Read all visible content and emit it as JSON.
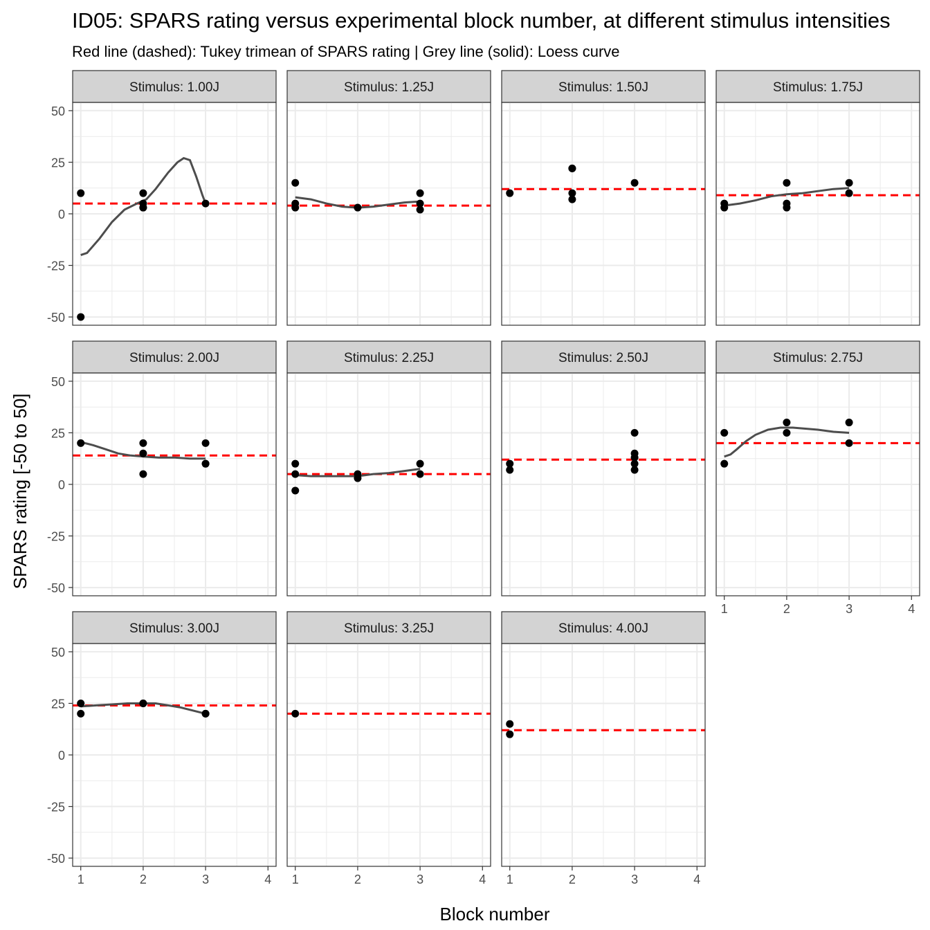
{
  "chart_data": {
    "type": "scatter",
    "title": "ID05: SPARS rating versus experimental block number, at different stimulus intensities",
    "subtitle": "Red line (dashed): Tukey trimean of SPARS rating | Grey line (solid): Loess curve",
    "xlabel": "Block number",
    "ylabel": "SPARS rating [-50 to 50]",
    "xlim": [
      0.87,
      4.13
    ],
    "ylim": [
      -54,
      54
    ],
    "x_ticks": [
      1,
      2,
      3,
      4
    ],
    "y_ticks": [
      -50,
      -25,
      0,
      25,
      50
    ],
    "grid": true,
    "colors": {
      "points": "#000000",
      "trimean": "#ff0000",
      "loess": "#4d4d4d",
      "strip": "#d3d3d3"
    },
    "panels": [
      {
        "strip": "Stimulus: 1.00J",
        "trimean": 5,
        "points": [
          [
            1,
            10
          ],
          [
            1,
            -50
          ],
          [
            2,
            10
          ],
          [
            2,
            5
          ],
          [
            2,
            3
          ],
          [
            2,
            3
          ],
          [
            3,
            5
          ]
        ],
        "loess": [
          [
            1,
            -20
          ],
          [
            1.1,
            -19
          ],
          [
            1.3,
            -12
          ],
          [
            1.5,
            -4
          ],
          [
            1.7,
            2
          ],
          [
            1.9,
            5
          ],
          [
            2.05,
            7
          ],
          [
            2.2,
            12
          ],
          [
            2.4,
            20
          ],
          [
            2.55,
            25
          ],
          [
            2.65,
            27
          ],
          [
            2.75,
            26
          ],
          [
            2.85,
            18
          ],
          [
            2.95,
            9
          ],
          [
            3,
            5
          ]
        ]
      },
      {
        "strip": "Stimulus: 1.25J",
        "trimean": 4,
        "points": [
          [
            1,
            15
          ],
          [
            1,
            5
          ],
          [
            1,
            3
          ],
          [
            2,
            3
          ],
          [
            3,
            10
          ],
          [
            3,
            5
          ],
          [
            3,
            2
          ]
        ],
        "loess": [
          [
            1,
            8
          ],
          [
            1.25,
            7
          ],
          [
            1.5,
            5
          ],
          [
            1.75,
            3.5
          ],
          [
            2,
            3
          ],
          [
            2.25,
            3.5
          ],
          [
            2.5,
            4.5
          ],
          [
            2.75,
            5.5
          ],
          [
            3,
            6
          ]
        ]
      },
      {
        "strip": "Stimulus: 1.50J",
        "trimean": 12,
        "points": [
          [
            1,
            10
          ],
          [
            2,
            22
          ],
          [
            2,
            22
          ],
          [
            2,
            10
          ],
          [
            2,
            7
          ],
          [
            3,
            15
          ]
        ],
        "loess": []
      },
      {
        "strip": "Stimulus: 1.75J",
        "trimean": 9,
        "points": [
          [
            1,
            5
          ],
          [
            1,
            3
          ],
          [
            2,
            15
          ],
          [
            2,
            5
          ],
          [
            2,
            3
          ],
          [
            3,
            15
          ],
          [
            3,
            10
          ]
        ],
        "loess": [
          [
            1,
            4
          ],
          [
            1.25,
            5
          ],
          [
            1.5,
            6.5
          ],
          [
            1.75,
            8.5
          ],
          [
            2,
            9.5
          ],
          [
            2.25,
            10
          ],
          [
            2.5,
            11
          ],
          [
            2.75,
            12
          ],
          [
            3,
            12.5
          ]
        ]
      },
      {
        "strip": "Stimulus: 2.00J",
        "trimean": 14,
        "points": [
          [
            1,
            20
          ],
          [
            2,
            20
          ],
          [
            2,
            15
          ],
          [
            2,
            5
          ],
          [
            3,
            20
          ],
          [
            3,
            10
          ],
          [
            3,
            10
          ]
        ],
        "loess": [
          [
            1,
            20.5
          ],
          [
            1.2,
            19
          ],
          [
            1.4,
            17
          ],
          [
            1.6,
            15
          ],
          [
            1.8,
            14
          ],
          [
            2,
            13.5
          ],
          [
            2.25,
            13
          ],
          [
            2.5,
            13
          ],
          [
            2.75,
            12.5
          ],
          [
            3,
            12.5
          ]
        ]
      },
      {
        "strip": "Stimulus: 2.25J",
        "trimean": 5,
        "points": [
          [
            1,
            10
          ],
          [
            1,
            5
          ],
          [
            1,
            -3
          ],
          [
            2,
            5
          ],
          [
            2,
            3
          ],
          [
            3,
            10
          ],
          [
            3,
            5
          ]
        ],
        "loess": [
          [
            1,
            4.5
          ],
          [
            1.25,
            4
          ],
          [
            1.5,
            4
          ],
          [
            1.75,
            4
          ],
          [
            2,
            4
          ],
          [
            2.25,
            5
          ],
          [
            2.5,
            5.5
          ],
          [
            2.75,
            6.5
          ],
          [
            3,
            7.5
          ]
        ]
      },
      {
        "strip": "Stimulus: 2.50J",
        "trimean": 12,
        "points": [
          [
            1,
            10
          ],
          [
            1,
            7
          ],
          [
            3,
            25
          ],
          [
            3,
            15
          ],
          [
            3,
            13
          ],
          [
            3,
            10
          ],
          [
            3,
            7
          ]
        ],
        "loess": []
      },
      {
        "strip": "Stimulus: 2.75J",
        "trimean": 20,
        "points": [
          [
            1,
            25
          ],
          [
            1,
            10
          ],
          [
            2,
            30
          ],
          [
            2,
            25
          ],
          [
            3,
            30
          ],
          [
            3,
            20
          ]
        ],
        "loess": [
          [
            1,
            13.5
          ],
          [
            1.1,
            14.5
          ],
          [
            1.2,
            17
          ],
          [
            1.35,
            21
          ],
          [
            1.5,
            24
          ],
          [
            1.7,
            26.5
          ],
          [
            1.9,
            27.5
          ],
          [
            2.1,
            27.5
          ],
          [
            2.3,
            27
          ],
          [
            2.5,
            26.5
          ],
          [
            2.75,
            25.5
          ],
          [
            3,
            25
          ]
        ]
      },
      {
        "strip": "Stimulus: 3.00J",
        "trimean": 24,
        "points": [
          [
            1,
            25
          ],
          [
            1,
            20
          ],
          [
            2,
            25
          ],
          [
            2,
            25
          ],
          [
            3,
            20
          ],
          [
            3,
            20
          ]
        ],
        "loess": [
          [
            1,
            23.5
          ],
          [
            1.25,
            24
          ],
          [
            1.5,
            24.5
          ],
          [
            1.75,
            25
          ],
          [
            2,
            25
          ],
          [
            2.2,
            25
          ],
          [
            2.4,
            24
          ],
          [
            2.6,
            23
          ],
          [
            2.8,
            21.5
          ],
          [
            3,
            20
          ]
        ]
      },
      {
        "strip": "Stimulus: 3.25J",
        "trimean": 20,
        "points": [
          [
            1,
            20
          ]
        ],
        "loess": []
      },
      {
        "strip": "Stimulus: 4.00J",
        "trimean": 12,
        "points": [
          [
            1,
            15
          ],
          [
            1,
            10
          ]
        ],
        "loess": []
      }
    ]
  }
}
